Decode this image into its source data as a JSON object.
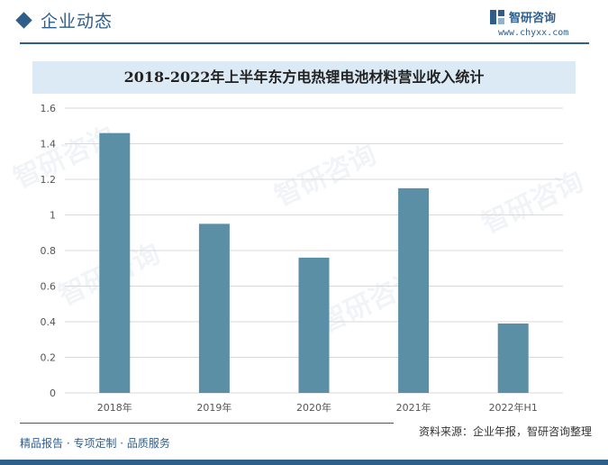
{
  "header": {
    "section_title": "企业动态",
    "brand_name": "智研咨询",
    "brand_url": "www.chyxx.com"
  },
  "footer": {
    "tagline": "精品报告 · 专项定制 · 品质服务",
    "source": "资料来源：企业年报，智研咨询整理"
  },
  "watermark_text": "智研咨询",
  "colors": {
    "bar": "#5b8fa6",
    "accent": "#2e5e8a",
    "title_band": "#dceaf5"
  },
  "chart_data": {
    "type": "bar",
    "title": "2018-2022年上半年东方电热锂电池材料营业收入统计",
    "xlabel": "",
    "ylabel": "",
    "categories": [
      "2018年",
      "2019年",
      "2020年",
      "2021年",
      "2022年H1"
    ],
    "values": [
      1.46,
      0.95,
      0.76,
      1.15,
      0.39
    ],
    "ylim": [
      0,
      1.6
    ],
    "yticks": [
      0,
      0.2,
      0.4,
      0.6,
      0.8,
      1,
      1.2,
      1.4,
      1.6
    ],
    "grid": true,
    "legend": "none"
  }
}
